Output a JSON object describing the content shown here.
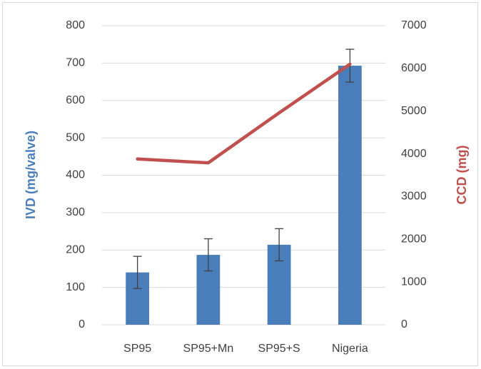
{
  "chart_data": {
    "type": "bar-line",
    "categories": [
      "SP95",
      "SP95+Mn",
      "SP95+S",
      "Nigeria"
    ],
    "series": [
      {
        "name": "IVD (mg/valve)",
        "type": "bar",
        "color": "#4a7ebb",
        "values": [
          140,
          187,
          214,
          693
        ],
        "errors": [
          43,
          43,
          43,
          44
        ]
      },
      {
        "name": "CCD (mg)",
        "type": "line",
        "axis": "y2",
        "color": "#c0504d",
        "values": [
          3880,
          3790,
          4960,
          6100
        ]
      }
    ],
    "ylabel": "IVD (mg/valve)",
    "y2label": "CCD (mg)",
    "ylim": [
      0,
      800
    ],
    "yticks": [
      0,
      100,
      200,
      300,
      400,
      500,
      600,
      700,
      800
    ],
    "y2lim": [
      0,
      7000
    ],
    "y2ticks": [
      0,
      1000,
      2000,
      3000,
      4000,
      5000,
      6000,
      7000
    ],
    "grid": true
  }
}
